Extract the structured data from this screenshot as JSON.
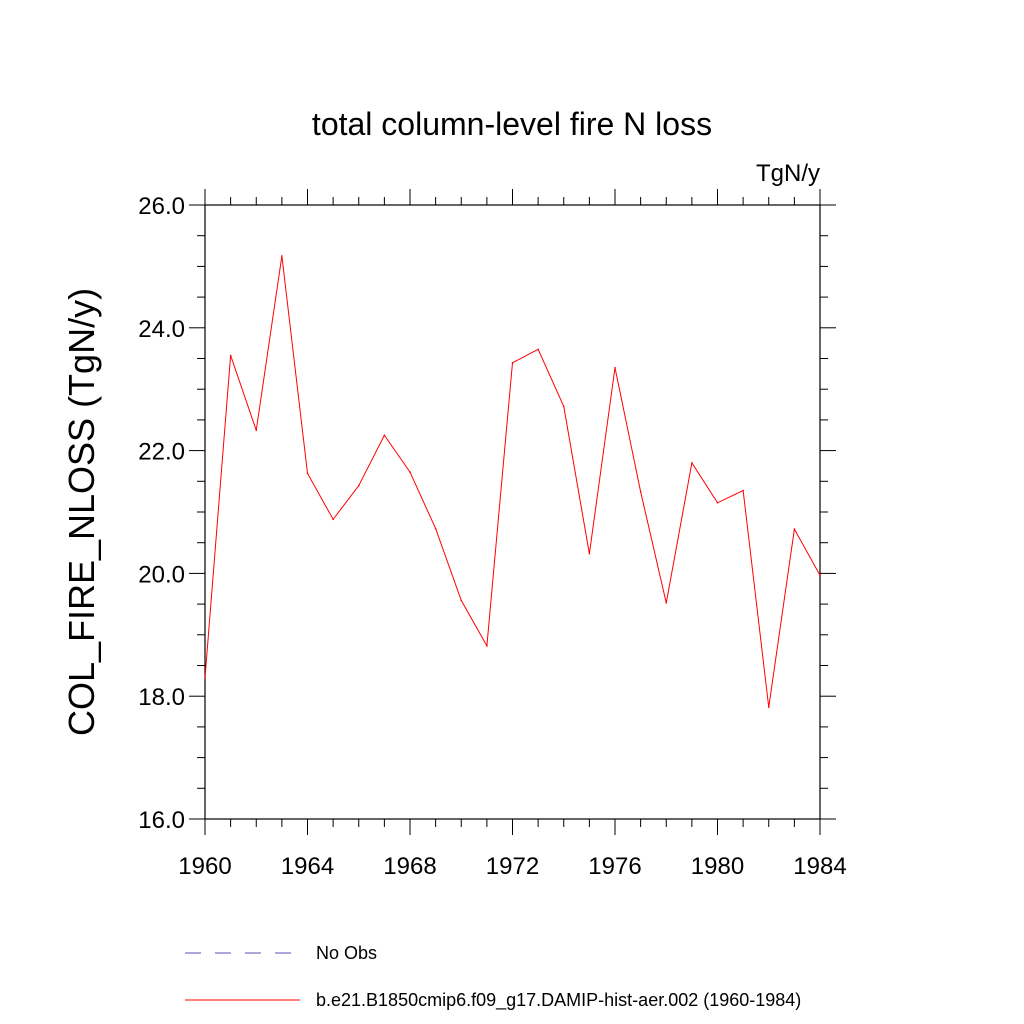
{
  "chart_data": {
    "type": "line",
    "title": "total column-level fire N loss",
    "units": "TgN/y",
    "ylabel": "COL_FIRE_NLOSS  (TgN/y)",
    "xlabel": "",
    "xlim": [
      1960,
      1984
    ],
    "ylim": [
      16.0,
      26.0
    ],
    "x_ticks": [
      "1960",
      "1964",
      "1968",
      "1972",
      "1976",
      "1980",
      "1984"
    ],
    "y_ticks": [
      "16.0",
      "18.0",
      "20.0",
      "22.0",
      "24.0",
      "26.0"
    ],
    "grid": false,
    "legend_placement": "bottom",
    "series": [
      {
        "name": "b.e21.B1850cmip6.f09_g17.DAMIP-hist-aer.002 (1960-1984)",
        "color": "#ff0000",
        "style": "solid",
        "x": [
          1960,
          1961,
          1962,
          1963,
          1964,
          1965,
          1966,
          1967,
          1968,
          1969,
          1970,
          1971,
          1972,
          1973,
          1974,
          1975,
          1976,
          1977,
          1978,
          1979,
          1980,
          1981,
          1982,
          1983,
          1984
        ],
        "values": [
          18.3,
          23.55,
          22.33,
          25.17,
          21.63,
          20.88,
          21.43,
          22.25,
          21.65,
          20.73,
          19.56,
          18.82,
          23.43,
          23.65,
          22.72,
          20.32,
          23.35,
          21.33,
          19.52,
          21.8,
          21.15,
          21.35,
          17.82,
          20.72,
          19.97
        ]
      }
    ],
    "legend": [
      {
        "label": "No Obs",
        "color": "#5a4fb0",
        "style": "dashed"
      },
      {
        "label": "b.e21.B1850cmip6.f09_g17.DAMIP-hist-aer.002 (1960-1984)",
        "color": "#ff0000",
        "style": "solid"
      }
    ]
  }
}
